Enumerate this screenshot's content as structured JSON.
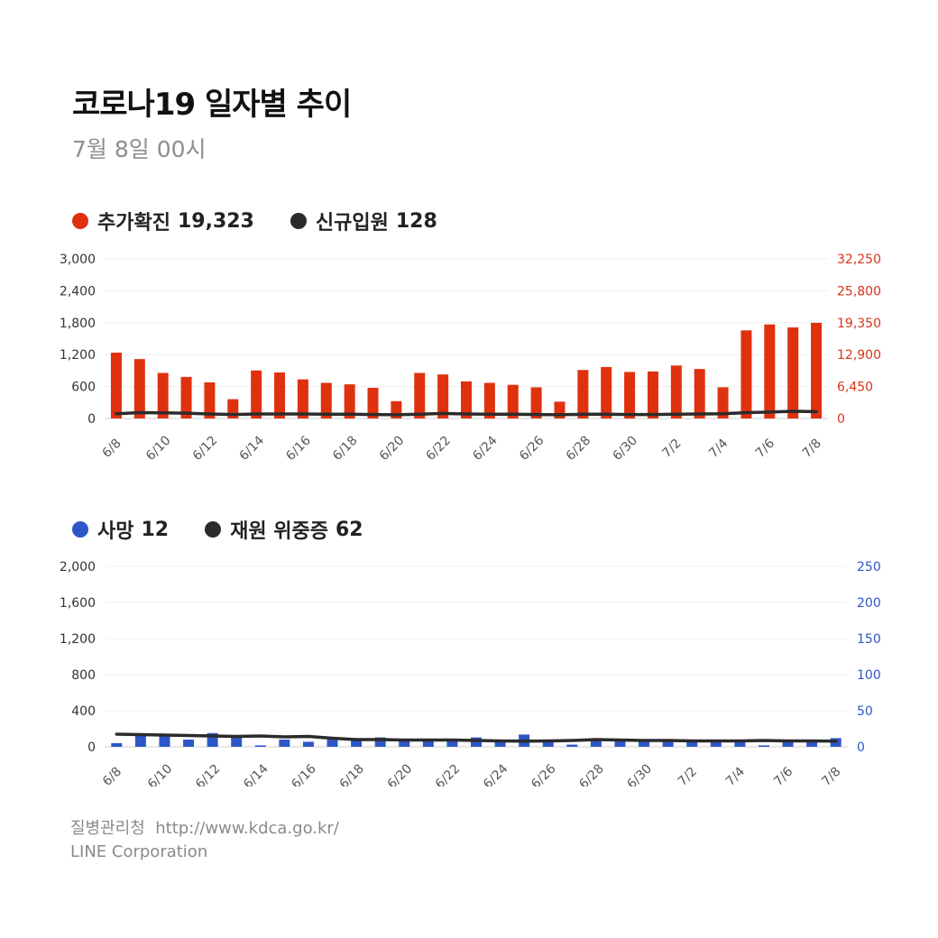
{
  "header": {
    "title": "코로나19 일자별 추이",
    "subtitle": "7월 8일 00시"
  },
  "legend1": {
    "items": [
      {
        "label": "추가확진",
        "value": "19,323",
        "color": "#e0310f"
      },
      {
        "label": "신규입원",
        "value": "128",
        "color": "#2b2b2b"
      }
    ]
  },
  "legend2": {
    "items": [
      {
        "label": "사망",
        "value": "12",
        "color": "#2f56c9"
      },
      {
        "label": "재원 위중증",
        "value": "62",
        "color": "#2b2b2b"
      }
    ]
  },
  "footer": {
    "source": "질병관리청",
    "url": "http://www.kdca.go.kr/",
    "company": "LINE Corporation"
  },
  "chart_data": [
    {
      "type": "bar",
      "categories": [
        "6/8",
        "6/9",
        "6/10",
        "6/11",
        "6/12",
        "6/13",
        "6/14",
        "6/15",
        "6/16",
        "6/17",
        "6/18",
        "6/19",
        "6/20",
        "6/21",
        "6/22",
        "6/23",
        "6/24",
        "6/25",
        "6/26",
        "6/27",
        "6/28",
        "6/29",
        "6/30",
        "7/1",
        "7/2",
        "7/3",
        "7/4",
        "7/5",
        "7/6",
        "7/7",
        "7/8"
      ],
      "x_tick_labels": [
        "6/8",
        "6/10",
        "6/12",
        "6/14",
        "6/16",
        "6/18",
        "6/20",
        "6/22",
        "6/24",
        "6/26",
        "6/28",
        "6/30",
        "7/2",
        "7/4",
        "7/6",
        "7/8"
      ],
      "series": [
        {
          "name": "추가확진",
          "kind": "bar",
          "axis": "right",
          "color": "#e0310f",
          "values": [
            13300,
            12000,
            9200,
            8400,
            7300,
            3900,
            9700,
            9300,
            7900,
            7200,
            6900,
            6200,
            3500,
            9200,
            8900,
            7500,
            7200,
            6800,
            6300,
            3400,
            9800,
            10400,
            9400,
            9500,
            10700,
            10000,
            6300,
            17800,
            19000,
            18400,
            19323
          ]
        },
        {
          "name": "신규입원",
          "kind": "line",
          "axis": "left",
          "color": "#2b2b2b",
          "values": [
            90,
            110,
            105,
            100,
            85,
            75,
            85,
            85,
            85,
            80,
            80,
            75,
            70,
            80,
            95,
            85,
            80,
            80,
            75,
            70,
            80,
            80,
            75,
            75,
            80,
            85,
            90,
            110,
            120,
            135,
            128
          ]
        }
      ],
      "y_left": {
        "ticks": [
          "0",
          "600",
          "1,200",
          "1,800",
          "2,400",
          "3,000"
        ],
        "lim": [
          0,
          3000
        ],
        "color": "#333333"
      },
      "y_right": {
        "ticks": [
          "0",
          "6,450",
          "12,900",
          "19,350",
          "25,800",
          "32,250"
        ],
        "lim": [
          0,
          32250
        ],
        "color": "#d6341c"
      },
      "grid": true
    },
    {
      "type": "bar",
      "categories": [
        "6/8",
        "6/9",
        "6/10",
        "6/11",
        "6/12",
        "6/13",
        "6/14",
        "6/15",
        "6/16",
        "6/17",
        "6/18",
        "6/19",
        "6/20",
        "6/21",
        "6/22",
        "6/23",
        "6/24",
        "6/25",
        "6/26",
        "6/27",
        "6/28",
        "6/29",
        "6/30",
        "7/1",
        "7/2",
        "7/3",
        "7/4",
        "7/5",
        "7/6",
        "7/7",
        "7/8"
      ],
      "x_tick_labels": [
        "6/8",
        "6/10",
        "6/12",
        "6/14",
        "6/16",
        "6/18",
        "6/20",
        "6/22",
        "6/24",
        "6/26",
        "6/28",
        "6/30",
        "7/2",
        "7/4",
        "7/6",
        "7/8"
      ],
      "series": [
        {
          "name": "사망",
          "kind": "bar",
          "axis": "right",
          "color": "#2f56c9",
          "values": [
            5,
            17,
            17,
            10,
            19,
            16,
            2,
            10,
            7,
            10,
            9,
            13,
            10,
            11,
            10,
            13,
            10,
            17,
            7,
            3,
            9,
            9,
            9,
            8,
            8,
            8,
            7,
            2,
            9,
            8,
            12
          ]
        },
        {
          "name": "재원 위중증",
          "kind": "line",
          "axis": "left",
          "color": "#2b2b2b",
          "values": [
            140,
            135,
            130,
            125,
            120,
            115,
            120,
            110,
            115,
            95,
            80,
            80,
            75,
            75,
            75,
            70,
            65,
            62,
            65,
            70,
            80,
            75,
            70,
            70,
            65,
            65,
            65,
            70,
            65,
            65,
            62
          ]
        }
      ],
      "y_left": {
        "ticks": [
          "0",
          "400",
          "800",
          "1,200",
          "1,600",
          "2,000"
        ],
        "lim": [
          0,
          2000
        ],
        "color": "#333333"
      },
      "y_right": {
        "ticks": [
          "0",
          "50",
          "100",
          "150",
          "200",
          "250"
        ],
        "lim": [
          0,
          250
        ],
        "color": "#2f56c9"
      },
      "grid": true
    }
  ]
}
